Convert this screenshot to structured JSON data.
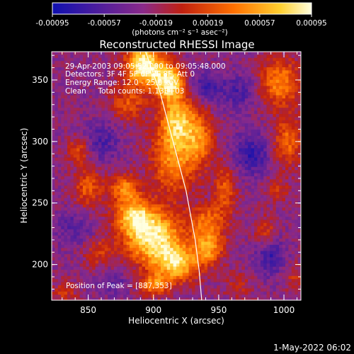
{
  "chart_data": {
    "type": "heatmap",
    "title": "Reconstructed RHESSI Image",
    "xlabel": "Heliocentric X (arcsec)",
    "ylabel": "Heliocentric Y (arcsec)",
    "xlim": [
      822,
      1013
    ],
    "ylim": [
      171,
      373
    ],
    "x_ticks": [
      850,
      900,
      950,
      1000
    ],
    "y_ticks": [
      200,
      250,
      300,
      350
    ],
    "grid": false,
    "colorbar": {
      "unit_label": "(photons cm⁻² s⁻¹ asec⁻²)",
      "min": -0.00095,
      "max": 0.00095,
      "tick_labels": [
        "-0.00095",
        "-0.00057",
        "-0.00019",
        "0.00019",
        "0.00057",
        "0.00095"
      ]
    },
    "annotations": {
      "time": "29-Apr-2003 09:05:52.000 to 09:05:48.000",
      "detectors": "Detectors: 3F 4F 5F 6F 7F 8F, Att 0",
      "energy": "Energy Range: 12.0 - 25.0 keV",
      "algorithm": "Clean     Total counts: 1.13E+03",
      "peak": "Position of Peak = [887,353]"
    },
    "limb_curve": [
      [
        894,
        373
      ],
      [
        905,
        340
      ],
      [
        915,
        300
      ],
      [
        925,
        260
      ],
      [
        932,
        220
      ],
      [
        935,
        195
      ],
      [
        937,
        171
      ]
    ],
    "blobs": [
      {
        "x": 893,
        "y": 362,
        "sx": 10,
        "sy": 12,
        "a": 1.5
      },
      {
        "x": 912,
        "y": 348,
        "sx": 8,
        "sy": 10,
        "a": 1.3
      },
      {
        "x": 918,
        "y": 318,
        "sx": 9,
        "sy": 14,
        "a": 1.0
      },
      {
        "x": 915,
        "y": 285,
        "sx": 12,
        "sy": 20,
        "a": 0.85
      },
      {
        "x": 900,
        "y": 222,
        "sx": 16,
        "sy": 15,
        "a": 1.35
      },
      {
        "x": 885,
        "y": 240,
        "sx": 10,
        "sy": 10,
        "a": 1.0
      },
      {
        "x": 878,
        "y": 262,
        "sx": 8,
        "sy": 8,
        "a": 0.8
      },
      {
        "x": 918,
        "y": 200,
        "sx": 12,
        "sy": 10,
        "a": 1.1
      },
      {
        "x": 942,
        "y": 213,
        "sx": 8,
        "sy": 9,
        "a": 0.9
      },
      {
        "x": 942,
        "y": 235,
        "sx": 10,
        "sy": 10,
        "a": 0.7
      },
      {
        "x": 935,
        "y": 302,
        "sx": 8,
        "sy": 16,
        "a": 0.75
      },
      {
        "x": 880,
        "y": 330,
        "sx": 10,
        "sy": 10,
        "a": 0.55
      },
      {
        "x": 955,
        "y": 262,
        "sx": 6,
        "sy": 14,
        "a": 0.6
      },
      {
        "x": 900,
        "y": 183,
        "sx": 8,
        "sy": 6,
        "a": 0.8
      },
      {
        "x": 850,
        "y": 262,
        "sx": 8,
        "sy": 12,
        "a": 0.6
      },
      {
        "x": 843,
        "y": 293,
        "sx": 6,
        "sy": 8,
        "a": 0.55
      },
      {
        "x": 832,
        "y": 178,
        "sx": 6,
        "sy": 6,
        "a": 0.45
      },
      {
        "x": 858,
        "y": 210,
        "sx": 8,
        "sy": 8,
        "a": 0.45
      },
      {
        "x": 997,
        "y": 348,
        "sx": 11,
        "sy": 14,
        "a": 0.85
      },
      {
        "x": 1003,
        "y": 300,
        "sx": 8,
        "sy": 14,
        "a": 0.7
      },
      {
        "x": 985,
        "y": 228,
        "sx": 6,
        "sy": 8,
        "a": 0.45
      },
      {
        "x": 1008,
        "y": 190,
        "sx": 6,
        "sy": 8,
        "a": 0.35
      },
      {
        "x": 965,
        "y": 183,
        "sx": 8,
        "sy": 8,
        "a": 0.3
      },
      {
        "x": 995,
        "y": 260,
        "sx": 7,
        "sy": 8,
        "a": 0.35
      },
      {
        "x": 940,
        "y": 345,
        "sx": 8,
        "sy": 8,
        "a": -0.5
      },
      {
        "x": 860,
        "y": 300,
        "sx": 10,
        "sy": 12,
        "a": -0.4
      },
      {
        "x": 975,
        "y": 290,
        "sx": 10,
        "sy": 12,
        "a": -0.55
      },
      {
        "x": 990,
        "y": 205,
        "sx": 8,
        "sy": 10,
        "a": -0.5
      },
      {
        "x": 840,
        "y": 230,
        "sx": 10,
        "sy": 10,
        "a": -0.35
      },
      {
        "x": 965,
        "y": 340,
        "sx": 10,
        "sy": 10,
        "a": -0.4
      },
      {
        "x": 870,
        "y": 185,
        "sx": 8,
        "sy": 8,
        "a": -0.3
      }
    ]
  },
  "footer": {
    "timestamp": "1-May-2022 06:02"
  }
}
